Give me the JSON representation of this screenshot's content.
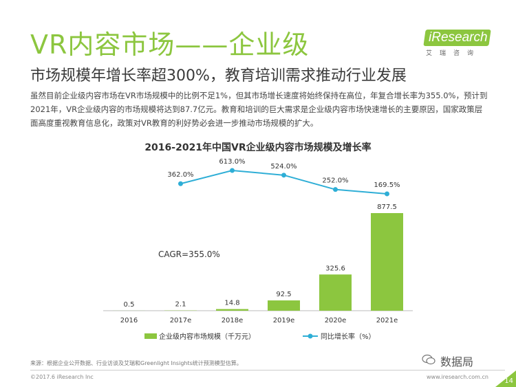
{
  "page": {
    "title": "VR内容市场——企业级",
    "subtitle": "市场规模年增长率超300%，教育培训需求推动行业发展",
    "body": "虽然目前企业级内容市场在VR市场规模中的比例不足1%，但其市场增长速度将始终保持在高位，年复合增长率为355.0%，预计到2021年，VR企业级内容的市场规模将达到87.7亿元。教育和培训的巨大需求是企业级内容市场快速增长的主要原因，国家政策层面高度重视教育信息化，政策对VR教育的利好势必会进一步推动市场规模的扩大。",
    "source": "来源：根据企业公开数据、行业访谈及艾瑞和Greenlight Insights统计预测模型估算。",
    "copyright": "©2017.6 iResearch Inc",
    "site": "www.iresearch.com.cn",
    "page_number": "14",
    "watermark": "数据局"
  },
  "logo": {
    "text": "iResearch",
    "sub": "艾瑞咨询"
  },
  "chart_data": {
    "type": "bar",
    "title": "2016-2021年中国VR企业级内容市场规模及增长率",
    "categories": [
      "2016",
      "2017e",
      "2018e",
      "2019e",
      "2020e",
      "2021e"
    ],
    "series": [
      {
        "name": "企业级内容市场规模（千万元）",
        "type": "bar",
        "values": [
          0.5,
          2.1,
          14.8,
          92.5,
          325.6,
          877.5
        ],
        "labels": [
          "0.5",
          "2.1",
          "14.8",
          "92.5",
          "325.6",
          "877.5"
        ]
      },
      {
        "name": "同比增长率（%）",
        "type": "line",
        "values": [
          null,
          362.0,
          613.0,
          524.0,
          252.0,
          169.5
        ],
        "labels": [
          "",
          "362.0%",
          "613.0%",
          "524.0%",
          "252.0%",
          "169.5%"
        ]
      }
    ],
    "annotation": "CAGR=355.0%",
    "colors": {
      "bar": "#8cc63f",
      "line": "#2eaed6"
    }
  }
}
